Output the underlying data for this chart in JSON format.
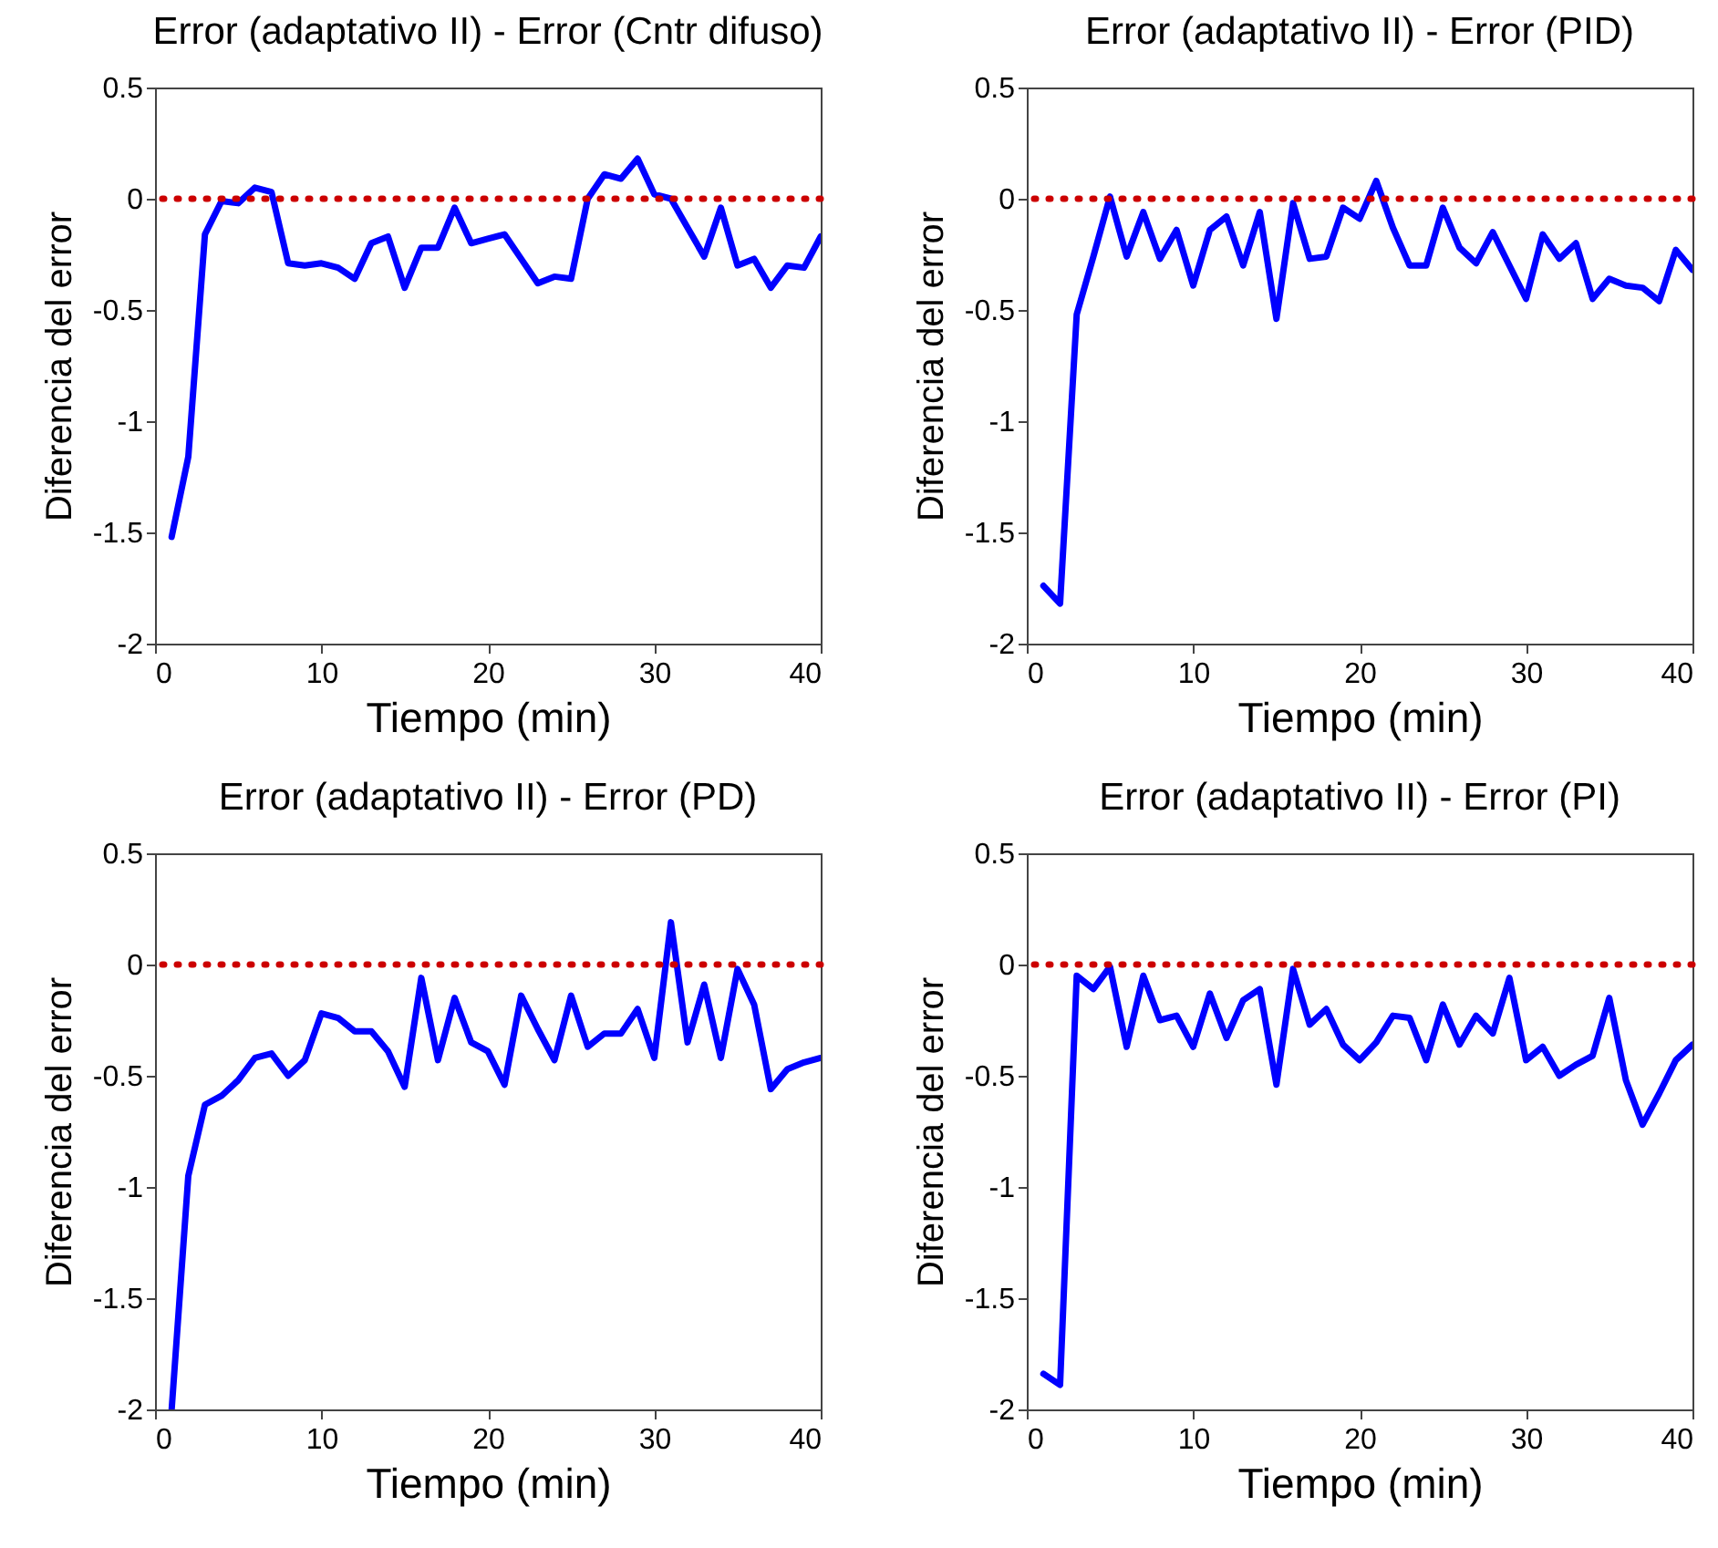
{
  "chart_data": [
    {
      "type": "line",
      "title": "Error (adaptativo II) - Error (Cntr difuso)",
      "xlabel": "Tiempo (min)",
      "ylabel": "Diferencia del error",
      "x": [
        1,
        2,
        3,
        4,
        5,
        6,
        7,
        8,
        9,
        10,
        11,
        12,
        13,
        14,
        15,
        16,
        17,
        18,
        19,
        20,
        21,
        22,
        23,
        24,
        25,
        26,
        27,
        28,
        29,
        30,
        31,
        32,
        33,
        34,
        35,
        36,
        37,
        38,
        39,
        40
      ],
      "series": [
        {
          "color": "#0000ff",
          "values": [
            -1.52,
            -1.16,
            -0.16,
            -0.01,
            -0.02,
            0.05,
            0.03,
            -0.29,
            -0.3,
            -0.29,
            -0.31,
            -0.36,
            -0.2,
            -0.17,
            -0.4,
            -0.22,
            -0.22,
            -0.04,
            -0.2,
            -0.18,
            -0.16,
            -0.27,
            -0.38,
            -0.35,
            -0.36,
            0,
            0.11,
            0.09,
            0.18,
            0.02,
            0,
            -0.13,
            -0.26,
            -0.04,
            -0.3,
            -0.27,
            -0.4,
            -0.3,
            -0.31,
            -0.17
          ]
        }
      ],
      "xlim": [
        0,
        40
      ],
      "ylim": [
        -2,
        0.5
      ],
      "xticks": [
        0,
        10,
        20,
        30,
        40
      ],
      "yticks": [
        -2,
        -1.5,
        -1,
        -0.5,
        0,
        0.5
      ],
      "ref_lines": [
        {
          "axis": "y",
          "value": 0,
          "color": "#cc0000",
          "line_style": "dotted"
        }
      ]
    },
    {
      "type": "line",
      "title": "Error (adaptativo II) - Error (PID)",
      "xlabel": "Tiempo (min)",
      "ylabel": "Diferencia del error",
      "x": [
        1,
        2,
        3,
        4,
        5,
        6,
        7,
        8,
        9,
        10,
        11,
        12,
        13,
        14,
        15,
        16,
        17,
        18,
        19,
        20,
        21,
        22,
        23,
        24,
        25,
        26,
        27,
        28,
        29,
        30,
        31,
        32,
        33,
        34,
        35,
        36,
        37,
        38,
        39,
        40
      ],
      "series": [
        {
          "color": "#0000ff",
          "values": [
            -1.74,
            -1.82,
            -0.52,
            -0.26,
            0.01,
            -0.26,
            -0.06,
            -0.27,
            -0.14,
            -0.39,
            -0.14,
            -0.08,
            -0.3,
            -0.06,
            -0.54,
            -0.02,
            -0.27,
            -0.26,
            -0.04,
            -0.09,
            0.08,
            -0.13,
            -0.3,
            -0.3,
            -0.04,
            -0.22,
            -0.29,
            -0.15,
            -0.3,
            -0.45,
            -0.16,
            -0.27,
            -0.2,
            -0.45,
            -0.36,
            -0.39,
            -0.4,
            -0.46,
            -0.23,
            -0.32
          ]
        }
      ],
      "xlim": [
        0,
        40
      ],
      "ylim": [
        -2,
        0.5
      ],
      "xticks": [
        0,
        10,
        20,
        30,
        40
      ],
      "yticks": [
        -2,
        -1.5,
        -1,
        -0.5,
        0,
        0.5
      ],
      "ref_lines": [
        {
          "axis": "y",
          "value": 0,
          "color": "#cc0000",
          "line_style": "dotted"
        }
      ]
    },
    {
      "type": "line",
      "title": "Error (adaptativo II) - Error (PD)",
      "xlabel": "Tiempo (min)",
      "ylabel": "Diferencia del error",
      "x": [
        1,
        2,
        3,
        4,
        5,
        6,
        7,
        8,
        9,
        10,
        11,
        12,
        13,
        14,
        15,
        16,
        17,
        18,
        19,
        20,
        21,
        22,
        23,
        24,
        25,
        26,
        27,
        28,
        29,
        30,
        31,
        32,
        33,
        34,
        35,
        36,
        37,
        38,
        39,
        40
      ],
      "series": [
        {
          "color": "#0000ff",
          "values": [
            -2,
            -0.95,
            -0.63,
            -0.59,
            -0.52,
            -0.42,
            -0.4,
            -0.5,
            -0.43,
            -0.22,
            -0.24,
            -0.3,
            -0.3,
            -0.39,
            -0.55,
            -0.06,
            -0.43,
            -0.15,
            -0.35,
            -0.39,
            -0.54,
            -0.14,
            -0.29,
            -0.43,
            -0.14,
            -0.37,
            -0.31,
            -0.31,
            -0.2,
            -0.42,
            0.19,
            -0.35,
            -0.09,
            -0.42,
            -0.02,
            -0.18,
            -0.56,
            -0.47,
            -0.44,
            -0.42
          ]
        }
      ],
      "xlim": [
        0,
        40
      ],
      "ylim": [
        -2,
        0.5
      ],
      "xticks": [
        0,
        10,
        20,
        30,
        40
      ],
      "yticks": [
        -2,
        -1.5,
        -1,
        -0.5,
        0,
        0.5
      ],
      "ref_lines": [
        {
          "axis": "y",
          "value": 0,
          "color": "#cc0000",
          "line_style": "dotted"
        }
      ]
    },
    {
      "type": "line",
      "title": "Error (adaptativo II) - Error (PI)",
      "xlabel": "Tiempo (min)",
      "ylabel": "Diferencia del error",
      "x": [
        1,
        2,
        3,
        4,
        5,
        6,
        7,
        8,
        9,
        10,
        11,
        12,
        13,
        14,
        15,
        16,
        17,
        18,
        19,
        20,
        21,
        22,
        23,
        24,
        25,
        26,
        27,
        28,
        29,
        30,
        31,
        32,
        33,
        34,
        35,
        36,
        37,
        38,
        39,
        40
      ],
      "series": [
        {
          "color": "#0000ff",
          "values": [
            -1.84,
            -1.89,
            -0.05,
            -0.11,
            -0.01,
            -0.37,
            -0.05,
            -0.25,
            -0.23,
            -0.37,
            -0.13,
            -0.33,
            -0.16,
            -0.11,
            -0.54,
            -0.02,
            -0.27,
            -0.2,
            -0.36,
            -0.43,
            -0.35,
            -0.23,
            -0.24,
            -0.43,
            -0.18,
            -0.36,
            -0.23,
            -0.31,
            -0.06,
            -0.43,
            -0.37,
            -0.5,
            -0.45,
            -0.41,
            -0.15,
            -0.52,
            -0.72,
            -0.58,
            -0.43,
            -0.36
          ]
        }
      ],
      "xlim": [
        0,
        40
      ],
      "ylim": [
        -2,
        0.5
      ],
      "xticks": [
        0,
        10,
        20,
        30,
        40
      ],
      "yticks": [
        -2,
        -1.5,
        -1,
        -0.5,
        0,
        0.5
      ],
      "ref_lines": [
        {
          "axis": "y",
          "value": 0,
          "color": "#cc0000",
          "line_style": "dotted"
        }
      ]
    }
  ]
}
